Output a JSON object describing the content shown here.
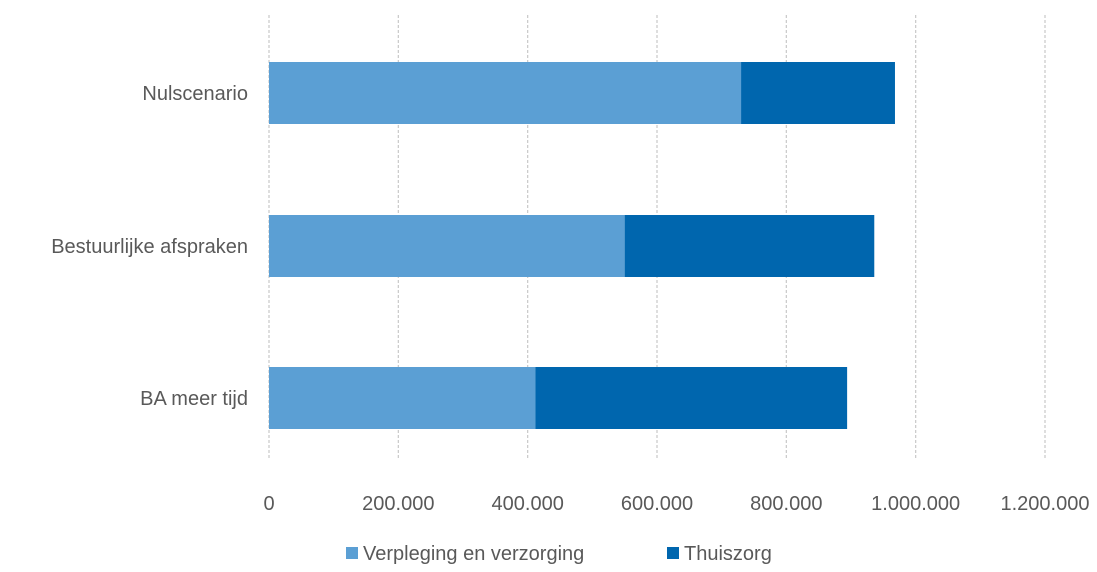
{
  "chart_data": {
    "type": "bar",
    "orientation": "horizontal",
    "stacked": true,
    "categories": [
      "Nulscenario",
      "Bestuurlijke afspraken",
      "BA meer tijd"
    ],
    "series": [
      {
        "name": "Verpleging en verzorging",
        "values": [
          730000,
          550000,
          412000
        ],
        "color": "#5B9FD4"
      },
      {
        "name": "Thuiszorg",
        "values": [
          238000,
          386000,
          482000
        ],
        "color": "#0066AE"
      }
    ],
    "xlim": [
      0,
      1200000
    ],
    "x_ticks": [
      0,
      200000,
      400000,
      600000,
      800000,
      1000000,
      1200000
    ],
    "x_tick_labels": [
      "0",
      "200.000",
      "400.000",
      "600.000",
      "800.000",
      "1.000.000",
      "1.200.000"
    ],
    "grid": "vertical dashed",
    "legend": "bottom",
    "title": "",
    "xlabel": "",
    "ylabel": ""
  }
}
